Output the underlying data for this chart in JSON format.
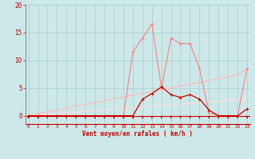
{
  "x": [
    0,
    1,
    2,
    3,
    4,
    5,
    6,
    7,
    8,
    9,
    10,
    11,
    12,
    13,
    14,
    15,
    16,
    17,
    18,
    19,
    20,
    21,
    22,
    23
  ],
  "line1": [
    0,
    0,
    0,
    0,
    0,
    0,
    0,
    0,
    0,
    0,
    0,
    11.5,
    14,
    16.5,
    5,
    14,
    13,
    13,
    8.5,
    0.5,
    0,
    0,
    0,
    8.5
  ],
  "line2": [
    0,
    0,
    0,
    0,
    0,
    0,
    0,
    0,
    0,
    0,
    0,
    0,
    3.0,
    4.0,
    5.2,
    3.8,
    3.3,
    3.8,
    3.0,
    1.0,
    0,
    0,
    0,
    1.2
  ],
  "line3_slope": [
    0,
    0.35,
    0.7,
    1.0,
    1.35,
    1.7,
    2.0,
    2.35,
    2.7,
    3.0,
    3.35,
    3.7,
    4.0,
    4.35,
    4.7,
    5.0,
    5.35,
    5.7,
    6.0,
    6.35,
    6.7,
    7.0,
    7.35,
    8.5
  ],
  "line4_slope": [
    0,
    0.13,
    0.26,
    0.39,
    0.52,
    0.65,
    0.78,
    0.91,
    1.04,
    1.17,
    1.3,
    1.43,
    1.56,
    1.69,
    1.82,
    1.95,
    2.08,
    2.21,
    2.34,
    2.47,
    2.6,
    2.73,
    2.86,
    3.5
  ],
  "bg_color": "#cce8e8",
  "grid_color": "#aacccc",
  "line1_color": "#ff8080",
  "line2_color": "#cc0000",
  "line3_color": "#ffbbbb",
  "line4_color": "#ffdddd",
  "arrow_color": "#cc0000",
  "xlabel": "Vent moyen/en rafales ( km/h )",
  "ylim_top": 20,
  "xlim_max": 23,
  "yticks": [
    0,
    5,
    10,
    15,
    20
  ],
  "xticks": [
    0,
    1,
    2,
    3,
    4,
    5,
    6,
    7,
    8,
    9,
    10,
    11,
    12,
    13,
    14,
    15,
    16,
    17,
    18,
    19,
    20,
    21,
    22,
    23
  ]
}
